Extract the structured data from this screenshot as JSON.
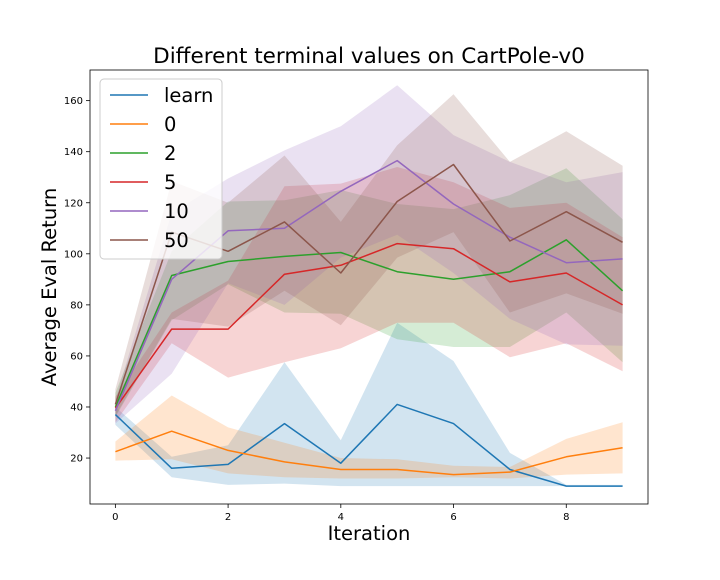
{
  "chart_data": {
    "type": "line",
    "title": "Different terminal values on CartPole-v0",
    "xlabel": "Iteration",
    "ylabel": "Average Eval Return",
    "xlim": [
      -0.45,
      9.45
    ],
    "ylim": [
      2,
      172
    ],
    "xticks": [
      0,
      2,
      4,
      6,
      8
    ],
    "yticks": [
      20,
      40,
      60,
      80,
      100,
      120,
      140,
      160
    ],
    "grid": false,
    "legend_position": "top-left",
    "x": [
      0,
      1,
      2,
      3,
      4,
      5,
      6,
      7,
      8,
      9
    ],
    "series": [
      {
        "name": "learn",
        "color": "#1f77b4",
        "values": [
          37,
          16,
          17.5,
          33.5,
          18,
          41,
          33.5,
          15.5,
          9,
          9
        ],
        "lower": [
          33,
          12.5,
          9.5,
          10,
          9,
          9,
          9,
          9,
          9,
          9
        ],
        "upper": [
          40,
          20.5,
          25,
          57.5,
          27,
          73,
          58,
          22,
          9.5,
          9.5
        ]
      },
      {
        "name": "0",
        "color": "#ff7f0e",
        "values": [
          22.5,
          30.5,
          23,
          18.5,
          15.5,
          15.5,
          13.5,
          14.5,
          20.5,
          24
        ],
        "lower": [
          19,
          19.5,
          14,
          12.5,
          12,
          12,
          12.5,
          12,
          13.5,
          14
        ],
        "upper": [
          26.5,
          44.5,
          32,
          26,
          20,
          19.5,
          17,
          16.5,
          27.5,
          34
        ]
      },
      {
        "name": "2",
        "color": "#2ca02c",
        "values": [
          40,
          91.5,
          97,
          99,
          100.5,
          93,
          90,
          93,
          105.5,
          85.5
        ],
        "lower": [
          36,
          74,
          88,
          77,
          76.5,
          66.5,
          63.5,
          63.5,
          77,
          57.5
        ],
        "upper": [
          45.5,
          101,
          120.5,
          121,
          125,
          119.5,
          117.5,
          123,
          133.5,
          113.5
        ]
      },
      {
        "name": "5",
        "color": "#d62728",
        "values": [
          39.5,
          70.5,
          70.5,
          92,
          95.5,
          104,
          102,
          89,
          92.5,
          80
        ],
        "lower": [
          34,
          65,
          51.5,
          57.5,
          63,
          73,
          73,
          59.5,
          65,
          54
        ],
        "upper": [
          44,
          77,
          89.5,
          126.5,
          127.5,
          134,
          128,
          118,
          120,
          106.5
        ]
      },
      {
        "name": "10",
        "color": "#9467bd",
        "values": [
          38.5,
          90,
          109,
          110,
          124.5,
          136.5,
          119.5,
          106.5,
          96.5,
          98
        ],
        "lower": [
          33.5,
          53,
          88.5,
          80,
          98.5,
          107.5,
          92.5,
          74.5,
          64.5,
          64
        ],
        "upper": [
          43,
          116,
          129.5,
          140.5,
          150,
          166,
          146.5,
          136,
          128,
          132
        ]
      },
      {
        "name": "50",
        "color": "#8c564b",
        "values": [
          41,
          108.5,
          101,
          112.5,
          92.5,
          120.5,
          135,
          105,
          116.5,
          104.5
        ],
        "lower": [
          36.5,
          74.5,
          71.5,
          85.5,
          72,
          98.5,
          108.5,
          77,
          84.5,
          76.5
        ],
        "upper": [
          47,
          128.5,
          120,
          138.5,
          112.5,
          142.5,
          162.5,
          136,
          148,
          134.5
        ]
      }
    ]
  }
}
